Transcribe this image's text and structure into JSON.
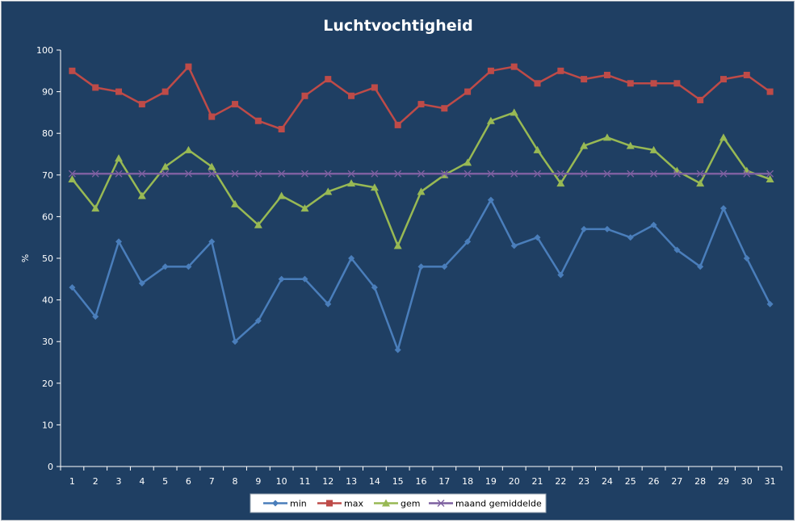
{
  "chart_data": {
    "type": "line",
    "title": "Luchtvochtigheid",
    "xlabel": "",
    "ylabel": "%",
    "ylim": [
      0,
      100
    ],
    "yticks": [
      0,
      10,
      20,
      30,
      40,
      50,
      60,
      70,
      80,
      90,
      100
    ],
    "categories": [
      "1",
      "2",
      "3",
      "4",
      "5",
      "6",
      "7",
      "8",
      "9",
      "10",
      "11",
      "12",
      "13",
      "14",
      "15",
      "16",
      "17",
      "18",
      "19",
      "20",
      "21",
      "22",
      "23",
      "24",
      "25",
      "26",
      "27",
      "28",
      "29",
      "30",
      "31"
    ],
    "grid": false,
    "legend_position": "bottom",
    "series": [
      {
        "name": "min",
        "color": "#4a7ebb",
        "marker": "diamond",
        "values": [
          43,
          36,
          54,
          44,
          48,
          48,
          54,
          30,
          35,
          45,
          45,
          39,
          50,
          43,
          28,
          48,
          48,
          54,
          64,
          53,
          55,
          46,
          57,
          57,
          55,
          58,
          52,
          48,
          62,
          50,
          39
        ]
      },
      {
        "name": "max",
        "color": "#be4b48",
        "marker": "square",
        "values": [
          95,
          91,
          90,
          87,
          90,
          96,
          84,
          87,
          83,
          81,
          89,
          93,
          89,
          91,
          82,
          87,
          86,
          90,
          95,
          96,
          92,
          95,
          93,
          94,
          92,
          92,
          92,
          88,
          93,
          94,
          90
        ]
      },
      {
        "name": "gem",
        "color": "#98b954",
        "marker": "triangle",
        "values": [
          69,
          62,
          74,
          65,
          72,
          76,
          72,
          63,
          58,
          65,
          62,
          66,
          68,
          67,
          53,
          66,
          70,
          73,
          83,
          85,
          76,
          68,
          77,
          79,
          77,
          76,
          71,
          68,
          79,
          71,
          69
        ]
      },
      {
        "name": "maand gemiddelde",
        "color": "#7d60a0",
        "marker": "x",
        "values": [
          70.3,
          70.3,
          70.3,
          70.3,
          70.3,
          70.3,
          70.3,
          70.3,
          70.3,
          70.3,
          70.3,
          70.3,
          70.3,
          70.3,
          70.3,
          70.3,
          70.3,
          70.3,
          70.3,
          70.3,
          70.3,
          70.3,
          70.3,
          70.3,
          70.3,
          70.3,
          70.3,
          70.3,
          70.3,
          70.3,
          70.3
        ]
      }
    ]
  }
}
